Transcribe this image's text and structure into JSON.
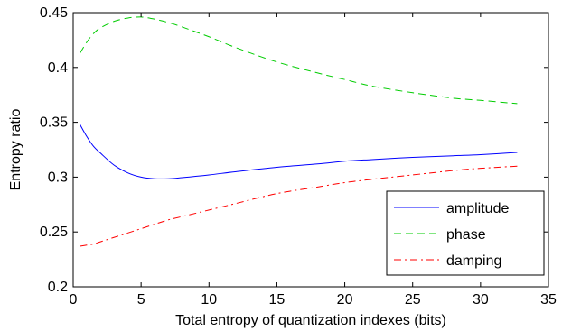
{
  "chart_data": {
    "type": "line",
    "title": "",
    "xlabel": "Total entropy of quantization indexes (bits)",
    "ylabel": "Entropy ratio",
    "xlim": [
      0,
      35
    ],
    "ylim": [
      0.2,
      0.45
    ],
    "xticks": [
      0,
      5,
      10,
      15,
      20,
      25,
      30,
      35
    ],
    "yticks": [
      0.2,
      0.25,
      0.3,
      0.35,
      0.4,
      0.45
    ],
    "xtick_labels": [
      "0",
      "5",
      "10",
      "15",
      "20",
      "25",
      "30",
      "35"
    ],
    "ytick_labels": [
      "0.2",
      "0.25",
      "0.3",
      "0.35",
      "0.4",
      "0.45"
    ],
    "grid": false,
    "legend_position": "bottom-right",
    "series": [
      {
        "name": "amplitude",
        "color": "#0000ff",
        "style": "solid",
        "x": [
          0.5,
          1,
          1.5,
          2,
          3,
          4,
          5,
          6,
          7,
          8,
          10,
          12,
          15,
          18,
          20,
          22,
          25,
          28,
          30,
          32.7
        ],
        "y": [
          0.348,
          0.337,
          0.328,
          0.322,
          0.311,
          0.304,
          0.3,
          0.2985,
          0.2985,
          0.2995,
          0.302,
          0.305,
          0.309,
          0.312,
          0.3145,
          0.316,
          0.318,
          0.3195,
          0.3205,
          0.3225
        ]
      },
      {
        "name": "phase",
        "color": "#00cc00",
        "style": "dashed",
        "x": [
          0.5,
          1,
          1.5,
          2,
          3,
          4,
          5,
          6,
          7,
          8,
          10,
          12,
          15,
          18,
          20,
          22,
          25,
          28,
          30,
          32.7
        ],
        "y": [
          0.413,
          0.423,
          0.431,
          0.436,
          0.442,
          0.445,
          0.446,
          0.444,
          0.441,
          0.437,
          0.428,
          0.418,
          0.405,
          0.395,
          0.389,
          0.383,
          0.377,
          0.372,
          0.37,
          0.367
        ]
      },
      {
        "name": "damping",
        "color": "#ff0000",
        "style": "dashdot",
        "x": [
          0.5,
          1,
          1.5,
          2,
          3,
          4,
          5,
          6,
          7,
          8,
          10,
          12,
          15,
          18,
          20,
          22,
          25,
          28,
          30,
          32.7
        ],
        "y": [
          0.237,
          0.238,
          0.239,
          0.241,
          0.245,
          0.249,
          0.253,
          0.257,
          0.261,
          0.264,
          0.27,
          0.276,
          0.285,
          0.291,
          0.295,
          0.298,
          0.302,
          0.306,
          0.308,
          0.31
        ]
      }
    ]
  }
}
